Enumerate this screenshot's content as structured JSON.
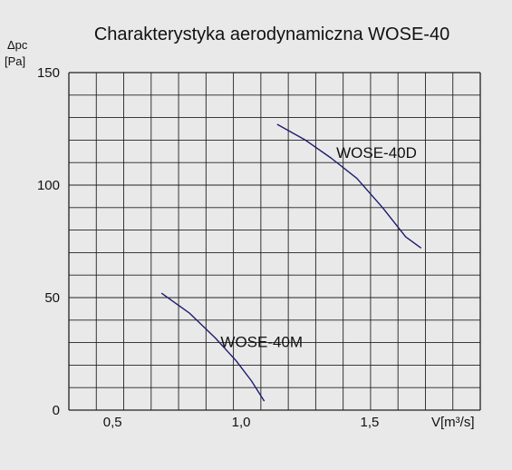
{
  "chart_data": {
    "type": "line",
    "title": "Charakterystyka aerodynamiczna WOSE-40",
    "ylabel": "Δpc",
    "yunit": "[Pa]",
    "xlabel": "V[m³/s]",
    "xlim": [
      0.33,
      1.93
    ],
    "ylim": [
      0,
      150
    ],
    "grid": true,
    "x_ticks": [
      {
        "value": 0.5,
        "label": "0,5"
      },
      {
        "value": 1.0,
        "label": "1,0"
      },
      {
        "value": 1.5,
        "label": "1,5"
      }
    ],
    "y_ticks": [
      {
        "value": 0,
        "label": "0"
      },
      {
        "value": 50,
        "label": "50"
      },
      {
        "value": 100,
        "label": "100"
      },
      {
        "value": 150,
        "label": "150"
      }
    ],
    "series": [
      {
        "name": "WOSE-40M",
        "color": "#1c1c6e",
        "points": [
          [
            0.69,
            52
          ],
          [
            0.8,
            43
          ],
          [
            0.9,
            32
          ],
          [
            0.98,
            22
          ],
          [
            1.04,
            13
          ],
          [
            1.09,
            4
          ]
        ]
      },
      {
        "name": "WOSE-40D",
        "color": "#1c1c6e",
        "points": [
          [
            1.14,
            127
          ],
          [
            1.25,
            120
          ],
          [
            1.35,
            112
          ],
          [
            1.45,
            103
          ],
          [
            1.55,
            90
          ],
          [
            1.64,
            77
          ],
          [
            1.7,
            72
          ]
        ]
      }
    ]
  }
}
